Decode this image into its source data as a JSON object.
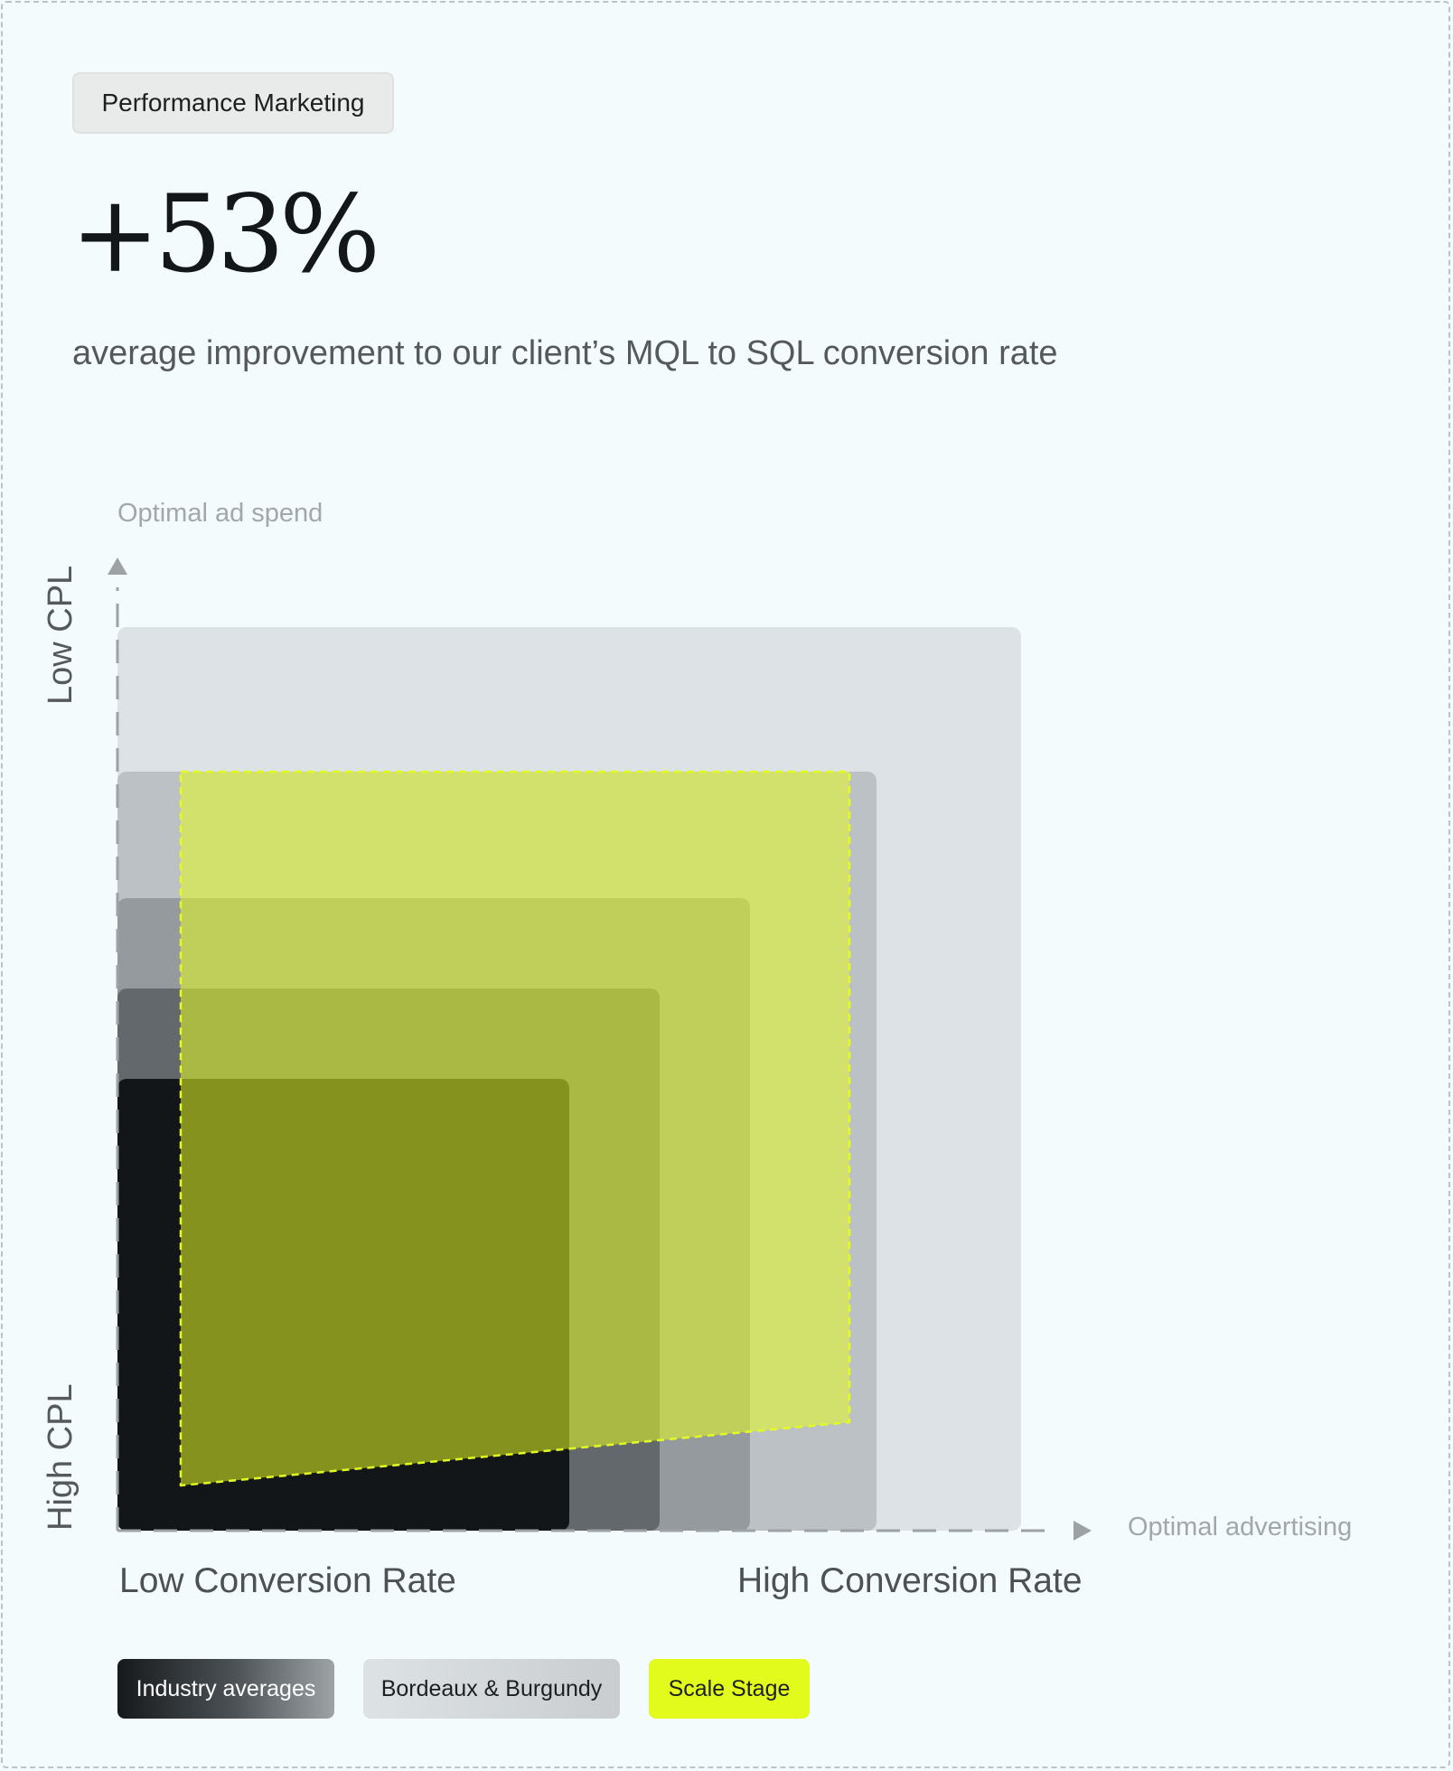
{
  "tag_label": "Performance Marketing",
  "headline_value": "+53%",
  "headline_caption": "average improvement to our client’s MQL to SQL conversion rate",
  "chart_data": {
    "type": "area",
    "title": "",
    "y_axis_note": "Optimal ad spend",
    "x_axis_note": "Optimal advertising",
    "y_labels": {
      "low_end": "High CPL",
      "high_end": "Low CPL"
    },
    "x_labels": {
      "low_end": "Low Conversion Rate",
      "high_end": "High Conversion Rate"
    },
    "grid": false,
    "legend_position": "bottom-left",
    "legend": [
      {
        "name": "Industry averages",
        "color": "#15181b"
      },
      {
        "name": "Bordeaux & Burgundy",
        "color": "#c9cdcf"
      },
      {
        "name": "Scale Stage",
        "color": "#e2fb1d"
      }
    ],
    "industry_layers": [
      {
        "width": 0.5,
        "height": 0.5,
        "color": "#0f1215",
        "opacity": 0.95
      },
      {
        "width": 0.6,
        "height": 0.6,
        "color": "#3a3f43",
        "opacity": 0.55
      },
      {
        "width": 0.7,
        "height": 0.7,
        "color": "#5a6064",
        "opacity": 0.4
      },
      {
        "width": 0.84,
        "height": 0.84,
        "color": "#8a9094",
        "opacity": 0.4
      },
      {
        "width": 1.0,
        "height": 1.0,
        "color": "#c8ced1",
        "opacity": 0.55
      }
    ],
    "scale_stage": {
      "color": "#e4fb22",
      "points": [
        [
          0.07,
          0.84
        ],
        [
          0.81,
          0.84
        ],
        [
          0.81,
          0.12
        ],
        [
          0.07,
          0.05
        ]
      ]
    }
  }
}
